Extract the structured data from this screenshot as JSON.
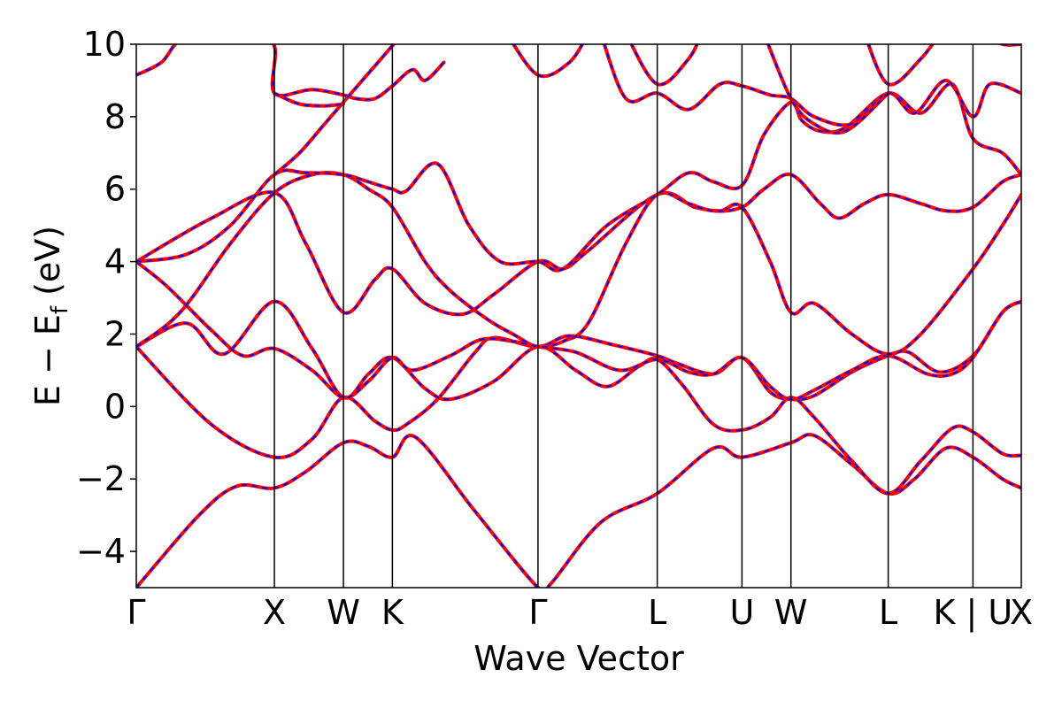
{
  "chart_data": {
    "type": "line",
    "xlabel": "Wave Vector",
    "ylabel_parts": {
      "main": "E − E",
      "sub": "f",
      "unit": " (eV)"
    },
    "ylim": [
      -5,
      10
    ],
    "yticks": [
      -4,
      -2,
      0,
      2,
      4,
      6,
      8,
      10
    ],
    "ytick_labels": [
      "−4",
      "−2",
      "0",
      "2",
      "4",
      "6",
      "8",
      "10"
    ],
    "xlim": [
      0,
      14.1
    ],
    "kpoints": [
      {
        "label": "Γ",
        "x": 0.0
      },
      {
        "label": "X",
        "x": 2.2
      },
      {
        "label": "W",
        "x": 3.3
      },
      {
        "label": "K",
        "x": 4.08
      },
      {
        "label": "Γ",
        "x": 6.4
      },
      {
        "label": "L",
        "x": 8.3
      },
      {
        "label": "U",
        "x": 9.65
      },
      {
        "label": "W",
        "x": 10.43
      },
      {
        "label": "L",
        "x": 11.98
      },
      {
        "label": "K | U",
        "x": 13.33
      },
      {
        "label": "X",
        "x": 14.1
      }
    ],
    "colors": {
      "dashed_overlay": "#0000ff",
      "solid": "#ff0000",
      "kline": "#000000"
    },
    "series": [
      {
        "values": [
          [
            0,
            -5.0
          ],
          [
            1.0,
            -3.0
          ],
          [
            1.6,
            -2.2
          ],
          [
            2.2,
            -2.25
          ],
          [
            2.7,
            -1.8
          ],
          [
            3.3,
            -1.0
          ],
          [
            3.7,
            -1.1
          ],
          [
            4.08,
            -1.4
          ],
          [
            4.45,
            -0.85
          ],
          [
            5.4,
            -2.9
          ],
          [
            6.4,
            -5.0
          ],
          [
            6.6,
            -4.9
          ],
          [
            7.4,
            -3.2
          ],
          [
            8.3,
            -2.4
          ],
          [
            9.2,
            -1.15
          ],
          [
            9.65,
            -1.4
          ],
          [
            10.43,
            -1.0
          ],
          [
            10.8,
            -0.8
          ],
          [
            11.4,
            -1.6
          ],
          [
            11.98,
            -2.4
          ],
          [
            12.4,
            -2.0
          ],
          [
            12.9,
            -1.15
          ],
          [
            13.33,
            -1.4
          ],
          [
            13.8,
            -2.0
          ],
          [
            14.1,
            -2.25
          ]
        ]
      },
      {
        "values": [
          [
            0,
            1.65
          ],
          [
            1.2,
            -0.5
          ],
          [
            2.2,
            -1.4
          ],
          [
            2.8,
            -0.9
          ],
          [
            3.3,
            0.25
          ],
          [
            3.8,
            -0.4
          ],
          [
            4.08,
            -0.65
          ],
          [
            4.3,
            -0.5
          ],
          [
            4.8,
            0.2
          ],
          [
            5.4,
            1.5
          ],
          [
            5.7,
            1.9
          ],
          [
            6.4,
            1.65
          ],
          [
            6.9,
            1.95
          ],
          [
            7.6,
            1.7
          ],
          [
            8.3,
            1.4
          ],
          [
            8.6,
            1.2
          ],
          [
            9.2,
            0.9
          ],
          [
            9.65,
            1.35
          ],
          [
            10.1,
            0.4
          ],
          [
            10.43,
            0.2
          ],
          [
            10.8,
            0.3
          ],
          [
            11.4,
            0.95
          ],
          [
            11.98,
            1.4
          ],
          [
            12.3,
            1.5
          ],
          [
            12.8,
            0.95
          ],
          [
            13.33,
            1.4
          ],
          [
            13.8,
            2.6
          ],
          [
            14.1,
            2.9
          ]
        ]
      },
      {
        "values": [
          [
            0,
            1.65
          ],
          [
            0.8,
            2.3
          ],
          [
            1.4,
            1.45
          ],
          [
            2.2,
            2.9
          ],
          [
            2.8,
            1.6
          ],
          [
            3.3,
            0.25
          ],
          [
            3.7,
            0.9
          ],
          [
            4.08,
            1.35
          ],
          [
            4.6,
            0.5
          ],
          [
            5.0,
            0.2
          ],
          [
            5.7,
            0.7
          ],
          [
            6.4,
            1.65
          ],
          [
            7.0,
            1.0
          ],
          [
            7.5,
            0.55
          ],
          [
            8.0,
            1.1
          ],
          [
            8.3,
            1.3
          ],
          [
            8.7,
            0.6
          ],
          [
            9.2,
            -0.5
          ],
          [
            9.65,
            -0.65
          ],
          [
            10.1,
            -0.3
          ],
          [
            10.43,
            0.25
          ],
          [
            10.8,
            -0.3
          ],
          [
            11.4,
            -1.5
          ],
          [
            11.98,
            -2.4
          ],
          [
            12.5,
            -1.5
          ],
          [
            13.0,
            -0.6
          ],
          [
            13.33,
            -0.7
          ],
          [
            13.8,
            -1.3
          ],
          [
            14.1,
            -1.35
          ]
        ]
      },
      {
        "values": [
          [
            0,
            4.0
          ],
          [
            0.5,
            3.3
          ],
          [
            1.2,
            2.1
          ],
          [
            1.7,
            1.4
          ],
          [
            2.2,
            1.6
          ],
          [
            2.8,
            1.0
          ],
          [
            3.3,
            0.25
          ],
          [
            3.7,
            0.7
          ],
          [
            4.08,
            1.35
          ],
          [
            4.4,
            1.0
          ],
          [
            5.0,
            1.4
          ],
          [
            5.5,
            1.85
          ],
          [
            6.0,
            1.8
          ],
          [
            6.4,
            1.65
          ],
          [
            7.0,
            1.5
          ],
          [
            7.7,
            1.0
          ],
          [
            8.3,
            1.3
          ],
          [
            8.8,
            0.95
          ],
          [
            9.2,
            0.9
          ],
          [
            9.65,
            1.35
          ],
          [
            10.1,
            0.55
          ],
          [
            10.43,
            0.2
          ],
          [
            10.8,
            0.45
          ],
          [
            11.4,
            1.0
          ],
          [
            11.98,
            1.4
          ],
          [
            12.6,
            0.9
          ],
          [
            13.0,
            0.9
          ],
          [
            13.33,
            1.35
          ],
          [
            13.8,
            2.6
          ],
          [
            14.1,
            2.9
          ]
        ]
      },
      {
        "values": [
          [
            0,
            4.0
          ],
          [
            1.2,
            5.2
          ],
          [
            2.2,
            5.9
          ],
          [
            2.7,
            4.5
          ],
          [
            3.3,
            2.6
          ],
          [
            3.8,
            3.5
          ],
          [
            4.08,
            3.8
          ],
          [
            4.6,
            2.85
          ],
          [
            5.2,
            2.55
          ],
          [
            5.7,
            3.1
          ],
          [
            6.4,
            4.0
          ],
          [
            6.8,
            3.8
          ],
          [
            7.2,
            4.3
          ],
          [
            8.3,
            5.85
          ],
          [
            8.9,
            5.5
          ],
          [
            9.3,
            5.4
          ],
          [
            9.65,
            5.5
          ],
          [
            10.1,
            4.0
          ],
          [
            10.43,
            2.6
          ],
          [
            10.8,
            2.85
          ],
          [
            11.4,
            2.0
          ],
          [
            11.98,
            1.45
          ],
          [
            12.5,
            2.0
          ],
          [
            13.33,
            3.8
          ],
          [
            13.8,
            5.0
          ],
          [
            14.1,
            5.85
          ]
        ]
      },
      {
        "values": [
          [
            0,
            1.65
          ],
          [
            0.7,
            2.6
          ],
          [
            1.5,
            4.5
          ],
          [
            2.2,
            5.9
          ],
          [
            2.8,
            6.4
          ],
          [
            3.3,
            6.4
          ],
          [
            3.7,
            6.0
          ],
          [
            4.08,
            5.5
          ],
          [
            4.6,
            4.0
          ],
          [
            5.0,
            3.2
          ],
          [
            5.6,
            2.4
          ],
          [
            6.0,
            2.0
          ],
          [
            6.4,
            1.65
          ],
          [
            6.8,
            1.8
          ],
          [
            7.2,
            2.3
          ],
          [
            7.8,
            4.5
          ],
          [
            8.3,
            5.85
          ],
          [
            8.8,
            5.6
          ],
          [
            9.2,
            5.4
          ],
          [
            9.65,
            5.5
          ],
          [
            10.0,
            6.0
          ],
          [
            10.43,
            6.4
          ],
          [
            10.9,
            5.6
          ],
          [
            11.2,
            5.2
          ],
          [
            11.6,
            5.6
          ],
          [
            11.98,
            5.85
          ],
          [
            12.5,
            5.6
          ],
          [
            12.9,
            5.4
          ],
          [
            13.33,
            5.5
          ],
          [
            13.8,
            6.2
          ],
          [
            14.1,
            6.4
          ]
        ]
      },
      {
        "values": [
          [
            0,
            4.0
          ],
          [
            0.8,
            4.2
          ],
          [
            1.5,
            5.0
          ],
          [
            2.2,
            6.4
          ],
          [
            2.7,
            6.45
          ],
          [
            3.3,
            6.4
          ],
          [
            3.7,
            6.2
          ],
          [
            4.08,
            6.0
          ],
          [
            4.3,
            5.95
          ],
          [
            4.8,
            6.7
          ],
          [
            5.3,
            5.0
          ],
          [
            5.8,
            4.0
          ],
          [
            6.4,
            4.0
          ],
          [
            6.8,
            3.8
          ],
          [
            7.5,
            5.0
          ],
          [
            8.3,
            5.85
          ],
          [
            8.8,
            6.45
          ],
          [
            9.2,
            6.2
          ],
          [
            9.65,
            6.1
          ],
          [
            10.0,
            7.5
          ],
          [
            10.43,
            8.4
          ],
          [
            10.6,
            7.9
          ],
          [
            10.9,
            7.6
          ],
          [
            11.3,
            7.7
          ],
          [
            11.98,
            8.65
          ],
          [
            12.5,
            8.1
          ],
          [
            13.0,
            8.9
          ],
          [
            13.33,
            7.4
          ],
          [
            13.8,
            7.0
          ],
          [
            14.1,
            6.4
          ]
        ]
      },
      {
        "values": [
          [
            0,
            9.15
          ],
          [
            0.4,
            9.5
          ],
          [
            0.8,
            10.2
          ],
          [
            1.8,
            10.2
          ],
          [
            2.2,
            9.95
          ],
          [
            2.2,
            8.65
          ],
          [
            2.8,
            8.75
          ],
          [
            3.3,
            8.6
          ],
          [
            3.5,
            8.5
          ],
          [
            3.8,
            8.5
          ],
          [
            4.08,
            8.85
          ],
          [
            4.4,
            9.3
          ],
          [
            4.6,
            9.0
          ],
          [
            4.9,
            9.5
          ]
        ]
      },
      {
        "values": [
          [
            2.2,
            6.4
          ],
          [
            2.6,
            7.0
          ],
          [
            3.0,
            7.8
          ],
          [
            3.3,
            8.4
          ],
          [
            3.6,
            9.0
          ],
          [
            3.9,
            9.6
          ],
          [
            4.2,
            10.2
          ]
        ]
      },
      {
        "values": [
          [
            2.2,
            8.65
          ],
          [
            2.6,
            8.35
          ],
          [
            3.0,
            8.3
          ],
          [
            3.3,
            8.35
          ]
        ]
      },
      {
        "values": [
          [
            5.9,
            10.3
          ],
          [
            6.4,
            9.15
          ],
          [
            6.9,
            9.5
          ],
          [
            7.2,
            10.3
          ]
        ]
      },
      {
        "values": [
          [
            7.4,
            10.3
          ],
          [
            7.8,
            8.5
          ],
          [
            8.3,
            8.65
          ],
          [
            8.8,
            8.2
          ],
          [
            9.3,
            8.9
          ],
          [
            9.65,
            8.85
          ],
          [
            10.1,
            8.6
          ],
          [
            10.43,
            8.5
          ],
          [
            10.8,
            8.0
          ],
          [
            11.4,
            7.8
          ],
          [
            11.98,
            8.65
          ],
          [
            12.4,
            8.1
          ],
          [
            12.9,
            9.0
          ],
          [
            13.33,
            8.0
          ],
          [
            13.6,
            8.9
          ],
          [
            14.1,
            8.65
          ]
        ]
      },
      {
        "values": [
          [
            7.8,
            10.3
          ],
          [
            8.3,
            8.9
          ],
          [
            8.8,
            9.6
          ],
          [
            9.0,
            10.3
          ]
        ]
      },
      {
        "values": [
          [
            10.0,
            10.3
          ],
          [
            10.43,
            8.5
          ],
          [
            10.8,
            7.8
          ],
          [
            11.3,
            7.6
          ],
          [
            11.98,
            8.65
          ]
        ]
      },
      {
        "values": [
          [
            11.6,
            10.3
          ],
          [
            11.98,
            8.9
          ],
          [
            12.5,
            9.6
          ],
          [
            12.8,
            10.3
          ]
        ]
      },
      {
        "values": [
          [
            13.33,
            10.3
          ],
          [
            13.5,
            10.3
          ],
          [
            13.8,
            10.0
          ],
          [
            14.1,
            10.0
          ]
        ]
      }
    ]
  }
}
